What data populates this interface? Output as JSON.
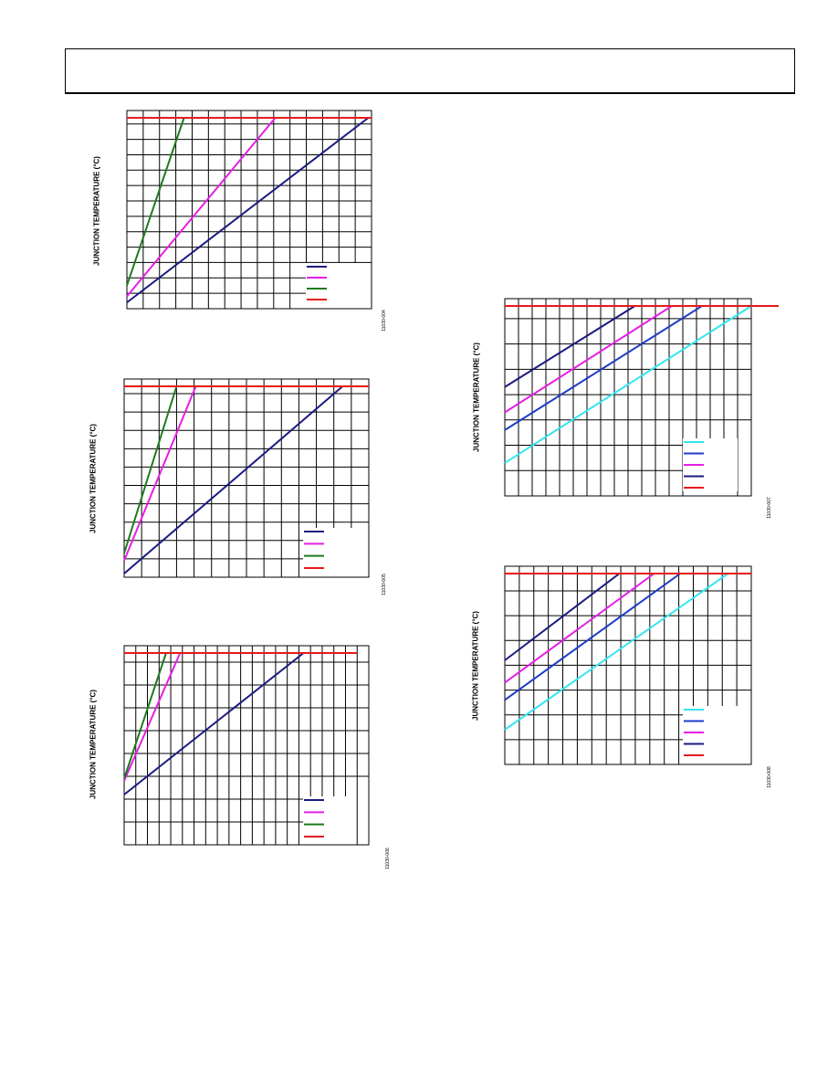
{
  "page": {
    "header": ""
  },
  "chart_data": [
    {
      "id": "fig1",
      "type": "line",
      "ylabel": "JUNCTION TEMPERATURE (°C)",
      "figure_id": "11030-004",
      "xlim": [
        0,
        15
      ],
      "ylim": [
        0,
        12.4
      ],
      "x_grid": [
        1,
        2,
        3,
        4,
        5,
        6,
        7,
        8,
        9,
        10,
        11,
        12,
        13,
        14,
        15
      ],
      "y_grid": [
        1,
        2,
        3,
        4,
        5,
        6,
        7,
        8,
        9,
        10,
        11,
        12
      ],
      "grid": true,
      "legend_position": "bottom-right",
      "series": [
        {
          "color": "#1a1a80",
          "x": [
            0,
            14.8
          ],
          "y": [
            0.4,
            12.4
          ]
        },
        {
          "color": "#e61ee6",
          "x": [
            0,
            9.1
          ],
          "y": [
            0.8,
            12.4
          ]
        },
        {
          "color": "#1e7a1e",
          "x": [
            0,
            3.5
          ],
          "y": [
            1.5,
            12.4
          ]
        },
        {
          "color": "#e61919",
          "x": [
            0,
            15
          ],
          "y": [
            12.4,
            12.4
          ]
        }
      ]
    },
    {
      "id": "fig2",
      "type": "line",
      "ylabel": "JUNCTION TEMPERATURE (°C)",
      "figure_id": "11030-005",
      "xlim": [
        0,
        14
      ],
      "ylim": [
        0,
        10.4
      ],
      "x_grid": [
        1,
        2,
        3,
        4,
        5,
        6,
        7,
        8,
        9,
        10,
        11,
        12,
        13,
        14
      ],
      "y_grid": [
        1,
        2,
        3,
        4,
        5,
        6,
        7,
        8,
        9,
        10
      ],
      "grid": true,
      "legend_position": "bottom-right",
      "series": [
        {
          "color": "#1a1a80",
          "x": [
            0,
            12.5
          ],
          "y": [
            0.2,
            10.4
          ]
        },
        {
          "color": "#e61ee6",
          "x": [
            0,
            4.1
          ],
          "y": [
            0.9,
            10.4
          ]
        },
        {
          "color": "#1e7a1e",
          "x": [
            0,
            3.0
          ],
          "y": [
            1.3,
            10.4
          ]
        },
        {
          "color": "#e61919",
          "x": [
            0,
            14
          ],
          "y": [
            10.4,
            10.4
          ]
        }
      ]
    },
    {
      "id": "fig3",
      "type": "line",
      "ylabel": "JUNCTION TEMPERATURE (°C)",
      "figure_id": "11030-006",
      "xlim": [
        0,
        21
      ],
      "ylim": [
        0,
        8.4
      ],
      "x_grid": [
        1,
        2,
        3,
        4,
        5,
        6,
        7,
        8,
        9,
        10,
        11,
        12,
        13,
        14,
        15,
        16,
        17,
        18,
        19,
        20,
        21
      ],
      "y_grid": [
        1,
        2,
        3,
        4,
        5,
        6,
        7,
        8
      ],
      "grid": true,
      "legend_position": "bottom-right",
      "series": [
        {
          "color": "#1a1a80",
          "x": [
            0,
            15.4
          ],
          "y": [
            2.2,
            8.4
          ]
        },
        {
          "color": "#e61ee6",
          "x": [
            0,
            4.8
          ],
          "y": [
            2.8,
            8.4
          ]
        },
        {
          "color": "#1e7a1e",
          "x": [
            0,
            3.6
          ],
          "y": [
            2.9,
            8.4
          ]
        },
        {
          "color": "#e61919",
          "x": [
            0,
            20
          ],
          "y": [
            8.4,
            8.4
          ]
        }
      ]
    },
    {
      "id": "fig4",
      "type": "line",
      "ylabel": "JUNCTION TEMPERATURE (°C)",
      "figure_id": "11030-007",
      "xlim": [
        0,
        18
      ],
      "ylim": [
        0,
        7.5
      ],
      "x_grid": [
        1,
        2,
        3,
        4,
        5,
        6,
        7,
        8,
        9,
        10,
        11,
        12,
        13,
        14,
        15,
        16,
        17,
        18
      ],
      "y_grid": [
        1,
        2,
        3,
        4,
        5,
        6,
        7
      ],
      "grid": true,
      "legend_position": "bottom-right",
      "series": [
        {
          "color": "#1a1a80",
          "x": [
            0,
            9.5
          ],
          "y": [
            4.3,
            7.5
          ]
        },
        {
          "color": "#e61ee6",
          "x": [
            0,
            12.2
          ],
          "y": [
            3.3,
            7.5
          ]
        },
        {
          "color": "#1e3cc8",
          "x": [
            0,
            14.4
          ],
          "y": [
            2.6,
            7.5
          ]
        },
        {
          "color": "#33e6f0",
          "x": [
            0,
            18.0
          ],
          "y": [
            1.3,
            7.5
          ]
        },
        {
          "color": "#e61919",
          "x": [
            0,
            20
          ],
          "y": [
            7.5,
            7.5
          ]
        }
      ],
      "legend_colors": [
        "#33e6f0",
        "#1e3cc8",
        "#e61ee6",
        "#1a1a80",
        "#e61919"
      ]
    },
    {
      "id": "fig5",
      "type": "line",
      "ylabel": "JUNCTION TEMPERATURE (°C)",
      "figure_id": "11030-008",
      "xlim": [
        0,
        17
      ],
      "ylim": [
        0,
        7.7
      ],
      "x_grid": [
        1,
        2,
        3,
        4,
        5,
        6,
        7,
        8,
        9,
        10,
        11,
        12,
        13,
        14,
        15,
        16,
        17
      ],
      "y_grid": [
        1,
        2,
        3,
        4,
        5,
        6,
        7
      ],
      "grid": true,
      "legend_position": "bottom-right",
      "series": [
        {
          "color": "#1a1a80",
          "x": [
            0,
            7.9
          ],
          "y": [
            4.2,
            7.7
          ]
        },
        {
          "color": "#e61ee6",
          "x": [
            0,
            10.3
          ],
          "y": [
            3.3,
            7.7
          ]
        },
        {
          "color": "#1e3cc8",
          "x": [
            0,
            12.1
          ],
          "y": [
            2.6,
            7.7
          ]
        },
        {
          "color": "#33e6f0",
          "x": [
            0,
            15.4
          ],
          "y": [
            1.4,
            7.7
          ]
        },
        {
          "color": "#e61919",
          "x": [
            0,
            17
          ],
          "y": [
            7.7,
            7.7
          ]
        }
      ],
      "legend_colors": [
        "#33e6f0",
        "#1e3cc8",
        "#e61ee6",
        "#1a1a80",
        "#e61919"
      ]
    }
  ]
}
